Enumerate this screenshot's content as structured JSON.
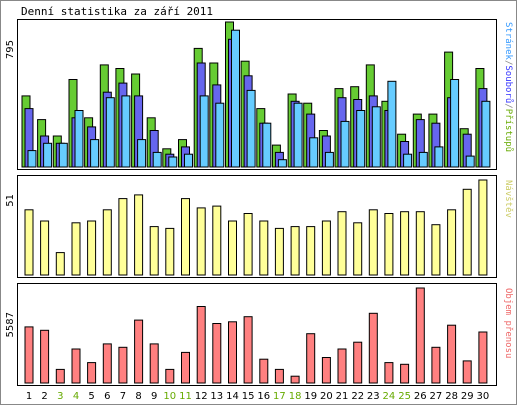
{
  "chart_data": [
    {
      "type": "bar",
      "title": "Denní statistika za září 2011",
      "ylabel_parts": [
        {
          "text": "Stránek",
          "color": "#3399ff"
        },
        {
          "text": "/",
          "color": "#888888"
        },
        {
          "text": "Souborů",
          "color": "#3333ff"
        },
        {
          "text": "/",
          "color": "#888888"
        },
        {
          "text": "Přístupů",
          "color": "#66aa00"
        }
      ],
      "ymax_label": "795",
      "ylim": [
        0,
        795
      ],
      "categories": [
        "1",
        "2",
        "3",
        "4",
        "5",
        "6",
        "7",
        "8",
        "9",
        "10",
        "11",
        "12",
        "13",
        "14",
        "15",
        "16",
        "17",
        "18",
        "19",
        "20",
        "21",
        "22",
        "23",
        "24",
        "25",
        "26",
        "27",
        "28",
        "29",
        "30"
      ],
      "weekend_days": [
        "3",
        "4",
        "10",
        "11",
        "17",
        "18",
        "24",
        "25"
      ],
      "series": [
        {
          "name": "Přístupů",
          "color": "#66cc33",
          "values": [
            390,
            260,
            170,
            480,
            270,
            560,
            540,
            510,
            270,
            100,
            150,
            650,
            570,
            795,
            580,
            320,
            120,
            400,
            350,
            200,
            430,
            440,
            560,
            360,
            180,
            290,
            290,
            630,
            210,
            540
          ]
        },
        {
          "name": "Souborů",
          "color": "#6666ee",
          "values": [
            320,
            170,
            130,
            270,
            220,
            410,
            460,
            390,
            200,
            70,
            110,
            570,
            450,
            700,
            500,
            240,
            80,
            360,
            290,
            170,
            380,
            370,
            390,
            310,
            140,
            260,
            240,
            380,
            180,
            430
          ]
        },
        {
          "name": "Stránek",
          "color": "#66ccff",
          "values": [
            90,
            130,
            130,
            310,
            150,
            380,
            390,
            150,
            80,
            55,
            70,
            390,
            350,
            750,
            420,
            240,
            40,
            350,
            160,
            80,
            250,
            310,
            330,
            470,
            70,
            80,
            110,
            480,
            60,
            360
          ]
        }
      ]
    },
    {
      "type": "bar",
      "ylabel": "Návštěv",
      "ylabel_color": "#cccc66",
      "ymax_label": "51",
      "ylim": [
        0,
        51
      ],
      "categories": [
        "1",
        "2",
        "3",
        "4",
        "5",
        "6",
        "7",
        "8",
        "9",
        "10",
        "11",
        "12",
        "13",
        "14",
        "15",
        "16",
        "17",
        "18",
        "19",
        "20",
        "21",
        "22",
        "23",
        "24",
        "25",
        "26",
        "27",
        "28",
        "29",
        "30"
      ],
      "series": [
        {
          "name": "Návštěv",
          "color": "#ffff99",
          "values": [
            35,
            29,
            12,
            28,
            29,
            35,
            41,
            43,
            26,
            25,
            41,
            36,
            37,
            29,
            33,
            29,
            25,
            26,
            26,
            29,
            34,
            28,
            35,
            33,
            34,
            34,
            27,
            35,
            46,
            51
          ]
        }
      ]
    },
    {
      "type": "bar",
      "ylabel": "Objem přenosu",
      "ylabel_color": "#ee6666",
      "ymax_label": "5587",
      "ylim": [
        0,
        5587
      ],
      "categories": [
        "1",
        "2",
        "3",
        "4",
        "5",
        "6",
        "7",
        "8",
        "9",
        "10",
        "11",
        "12",
        "13",
        "14",
        "15",
        "16",
        "17",
        "18",
        "19",
        "20",
        "21",
        "22",
        "23",
        "24",
        "25",
        "26",
        "27",
        "28",
        "29",
        "30"
      ],
      "series": [
        {
          "name": "Objem přenosu",
          "color": "#ff8080",
          "values": [
            3300,
            3100,
            800,
            2000,
            1200,
            2300,
            2100,
            3700,
            2300,
            800,
            1800,
            4500,
            3500,
            3600,
            3900,
            1400,
            800,
            400,
            2900,
            1500,
            2000,
            2400,
            4100,
            1200,
            1100,
            5587,
            2100,
            3400,
            1300,
            3000
          ]
        }
      ]
    }
  ]
}
